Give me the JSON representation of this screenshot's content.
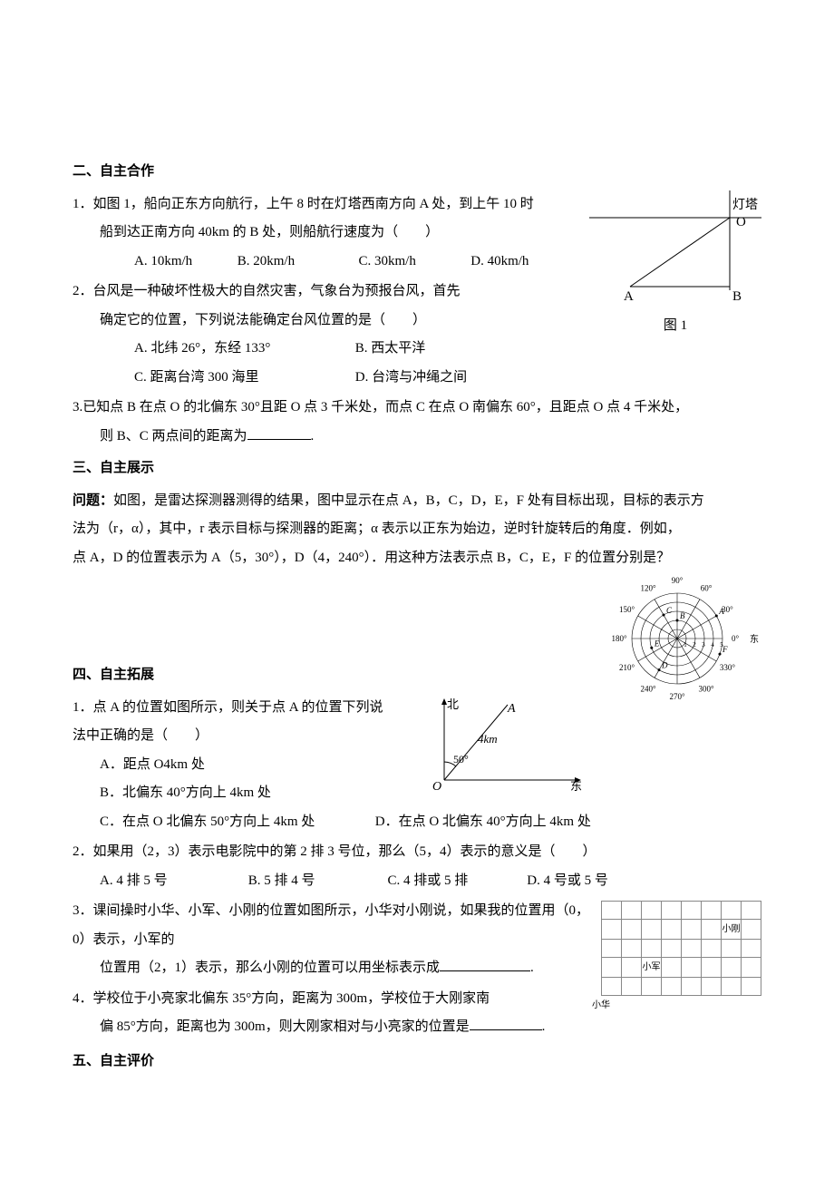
{
  "s2": {
    "heading": "二、自主合作",
    "q1": {
      "num": "1．",
      "line1": "如图 1，船向正东方向航行，上午 8 时在灯塔西南方向 A 处，到上午 10 时",
      "line2": "船到达正南方向 40km 的 B 处，则船航行速度为（　　）",
      "opts": {
        "a": "A. 10km/h",
        "b": "B. 20km/h",
        "c": "C. 30km/h",
        "d": "D. 40km/h"
      }
    },
    "q2": {
      "num": "2．",
      "line1": "台风是一种破坏性极大的自然灾害，气象台为预报台风，首先",
      "line2": "确定它的位置，下列说法能确定台风位置的是（　　）",
      "opts": {
        "a": "A. 北纬 26°，东经 133°",
        "b": "B. 西太平洋",
        "c": "C. 距离台湾 300 海里",
        "d": "D. 台湾与冲绳之间"
      }
    },
    "q3": {
      "num": "3.",
      "line1": "已知点 B 在点 O 的北偏东 30°且距 O 点 3 千米处，而点 C 在点 O 南偏东 60°，且距点 O 点 4 千米处，",
      "line2": "则 B、C 两点间的距离为",
      "period": "."
    },
    "fig1": {
      "labels": {
        "tower": "灯塔",
        "O": "O",
        "A": "A",
        "B": "B"
      },
      "caption": "图 1"
    }
  },
  "s3": {
    "heading": "三、自主展示",
    "problem": {
      "label": "问题：",
      "p1": "如图，是雷达探测器测得的结果，图中显示在点 A，B，C，D，E，F 处有目标出现，目标的表示方",
      "p2": "法为（r，α），其中，r 表示目标与探测器的距离；α 表示以正东为始边，逆时针旋转后的角度．例如，",
      "p3": "点 A，D 的位置表示为 A（5，30°），D（4，240°）．用这种方法表示点 B，C，E，F 的位置分别是？"
    },
    "radar": {
      "angles": [
        "0°",
        "30°",
        "60°",
        "90°",
        "120°",
        "150°",
        "180°",
        "210°",
        "240°",
        "270°",
        "300°",
        "330°"
      ],
      "east": "东",
      "ticks": [
        "1",
        "2",
        "3",
        "4",
        "5"
      ],
      "pts": [
        "A",
        "B",
        "C",
        "D",
        "E",
        "F"
      ]
    }
  },
  "s4": {
    "heading": "四、自主拓展",
    "q1": {
      "num": "1．",
      "text": "点 A 的位置如图所示，则关于点 A 的位置下列说法中正确的是（　　）",
      "opts": {
        "a": "A．距点 O4km 处",
        "b": "B．北偏东 40°方向上 4km 处",
        "c": "C．在点 O 北偏东 50°方向上 4km 处",
        "d": "D．在点 O 北偏东 40°方向上 4km 处"
      },
      "fig": {
        "north": "北",
        "east": "东",
        "A": "A",
        "O": "O",
        "dist": "4km",
        "ang": "50°"
      }
    },
    "q2": {
      "num": "2．",
      "text": "如果用（2，3）表示电影院中的第 2 排 3 号位，那么（5，4）表示的意义是（　　）",
      "opts": {
        "a": "A. 4 排 5 号",
        "b": "B. 5 排 4 号",
        "c": "C. 4 排或 5 排",
        "d": "D. 4 号或 5 号"
      }
    },
    "q3": {
      "num": "3．",
      "l1": "课间操时小华、小军、小刚的位置如图所示，小华对小刚说，如果我的位置用（0，0）表示，小军的",
      "l2": "位置用（2，1）表示，那么小刚的位置可以用坐标表示成",
      "period": "."
    },
    "q4": {
      "num": "4．",
      "l1": "学校位于小亮家北偏东 35°方向，距离为 300m，学校位于大刚家南",
      "l2": "偏 85°方向，距离也为 300m，则大刚家相对与小亮家的位置是",
      "period": "."
    },
    "grid": {
      "hua": "小华",
      "jun": "小军",
      "gang": "小刚"
    }
  },
  "s5": {
    "heading": "五、自主评价"
  }
}
